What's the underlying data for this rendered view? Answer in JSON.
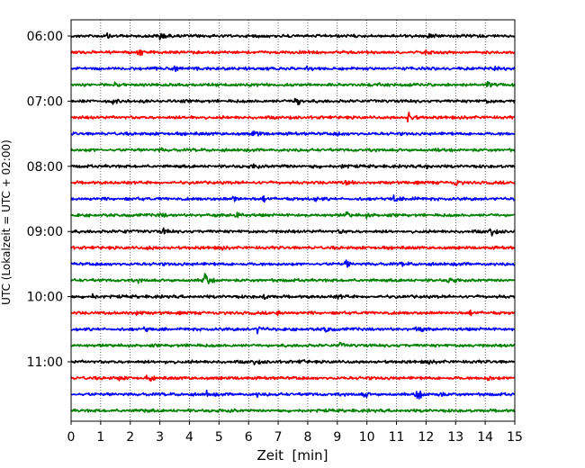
{
  "chart_data": {
    "type": "line",
    "title": "",
    "xlabel": "Zeit  [min]",
    "ylabel": "UTC (Lokalzeit = UTC + 02:00)",
    "xlim": [
      0,
      15
    ],
    "x_ticks": [
      0,
      1,
      2,
      3,
      4,
      5,
      6,
      7,
      8,
      9,
      10,
      11,
      12,
      13,
      14,
      15
    ],
    "x_tick_labels": [
      "0",
      "1",
      "2",
      "3",
      "4",
      "5",
      "6",
      "7",
      "8",
      "9",
      "10",
      "11",
      "12",
      "13",
      "14",
      "15"
    ],
    "grid": "vertical dotted",
    "y_tick_labels": [
      "06:00",
      "07:00",
      "08:00",
      "09:00",
      "10:00",
      "11:00"
    ],
    "trace_colors": [
      "#000000",
      "#ff0000",
      "#0000ff",
      "#008000"
    ],
    "series": [
      {
        "start": "06:00",
        "color": "#000000",
        "events": [
          [
            1.2,
            0.4
          ],
          [
            3.0,
            0.9
          ],
          [
            12.1,
            0.3
          ]
        ]
      },
      {
        "start": "06:15",
        "color": "#ff0000",
        "events": [
          [
            2.3,
            0.5
          ],
          [
            12.0,
            0.4
          ]
        ]
      },
      {
        "start": "06:30",
        "color": "#0000ff",
        "events": [
          [
            3.5,
            0.6
          ],
          [
            4.2,
            0.4
          ],
          [
            8.0,
            0.3
          ],
          [
            14.3,
            0.3
          ]
        ]
      },
      {
        "start": "06:45",
        "color": "#008000",
        "events": [
          [
            1.5,
            0.3
          ],
          [
            10.4,
            0.4
          ],
          [
            14.1,
            0.5
          ]
        ]
      },
      {
        "start": "07:00",
        "color": "#000000",
        "events": [
          [
            1.4,
            0.4
          ],
          [
            7.6,
            1.2
          ],
          [
            14.0,
            0.3
          ]
        ]
      },
      {
        "start": "07:15",
        "color": "#ff0000",
        "events": [
          [
            4.1,
            0.4
          ],
          [
            11.4,
            1.0
          ]
        ]
      },
      {
        "start": "07:30",
        "color": "#0000ff",
        "events": [
          [
            6.2,
            0.5
          ],
          [
            9.0,
            0.3
          ]
        ]
      },
      {
        "start": "07:45",
        "color": "#008000",
        "events": [
          [
            0.6,
            0.3
          ],
          [
            3.0,
            0.3
          ],
          [
            12.4,
            0.3
          ]
        ]
      },
      {
        "start": "08:00",
        "color": "#000000",
        "events": [
          [
            6.2,
            0.5
          ],
          [
            7.2,
            0.3
          ],
          [
            8.2,
            0.3
          ],
          [
            9.2,
            0.3
          ],
          [
            12.0,
            0.4
          ]
        ]
      },
      {
        "start": "08:15",
        "color": "#ff0000",
        "events": [
          [
            9.3,
            0.5
          ],
          [
            13.0,
            0.5
          ]
        ]
      },
      {
        "start": "08:30",
        "color": "#0000ff",
        "events": [
          [
            5.5,
            0.4
          ],
          [
            6.5,
            0.4
          ],
          [
            8.3,
            0.4
          ],
          [
            10.9,
            0.6
          ],
          [
            11.5,
            0.4
          ]
        ]
      },
      {
        "start": "08:45",
        "color": "#008000",
        "events": [
          [
            3.0,
            0.4
          ],
          [
            5.6,
            0.7
          ],
          [
            9.3,
            0.5
          ],
          [
            10.0,
            0.4
          ]
        ]
      },
      {
        "start": "09:00",
        "color": "#000000",
        "events": [
          [
            1.8,
            0.3
          ],
          [
            3.1,
            0.5
          ],
          [
            9.1,
            0.3
          ],
          [
            14.2,
            0.9
          ]
        ]
      },
      {
        "start": "09:15",
        "color": "#ff0000",
        "events": [
          [
            2.6,
            0.3
          ],
          [
            5.0,
            0.3
          ]
        ]
      },
      {
        "start": "09:30",
        "color": "#0000ff",
        "events": [
          [
            9.3,
            0.6
          ],
          [
            11.2,
            0.3
          ]
        ]
      },
      {
        "start": "09:45",
        "color": "#008000",
        "events": [
          [
            2.3,
            0.3
          ],
          [
            4.5,
            1.8
          ],
          [
            12.8,
            0.5
          ]
        ]
      },
      {
        "start": "10:00",
        "color": "#000000",
        "events": [
          [
            0.7,
            0.4
          ],
          [
            6.5,
            0.4
          ],
          [
            9.0,
            0.3
          ]
        ]
      },
      {
        "start": "10:15",
        "color": "#ff0000",
        "events": [
          [
            1.7,
            0.5
          ],
          [
            2.2,
            0.4
          ],
          [
            7.0,
            0.3
          ],
          [
            13.5,
            0.3
          ]
        ]
      },
      {
        "start": "10:30",
        "color": "#0000ff",
        "events": [
          [
            2.5,
            0.4
          ],
          [
            6.3,
            0.6
          ],
          [
            8.6,
            0.5
          ],
          [
            11.7,
            0.5
          ]
        ]
      },
      {
        "start": "10:45",
        "color": "#008000",
        "events": [
          [
            9.1,
            0.4
          ],
          [
            4.0,
            0.2
          ]
        ]
      },
      {
        "start": "11:00",
        "color": "#000000",
        "events": [
          [
            3.2,
            0.3
          ],
          [
            6.2,
            0.5
          ],
          [
            7.8,
            0.3
          ],
          [
            12.0,
            0.3
          ]
        ]
      },
      {
        "start": "11:15",
        "color": "#ff0000",
        "events": [
          [
            1.5,
            0.6
          ],
          [
            2.6,
            0.6
          ],
          [
            14.1,
            0.4
          ]
        ]
      },
      {
        "start": "11:30",
        "color": "#0000ff",
        "events": [
          [
            4.6,
            0.6
          ],
          [
            6.3,
            0.3
          ],
          [
            9.9,
            0.5
          ],
          [
            11.7,
            1.0
          ],
          [
            12.4,
            0.4
          ]
        ]
      },
      {
        "start": "11:45",
        "color": "#008000",
        "events": [
          [
            2.4,
            0.3
          ],
          [
            5.4,
            0.2
          ]
        ]
      }
    ]
  }
}
